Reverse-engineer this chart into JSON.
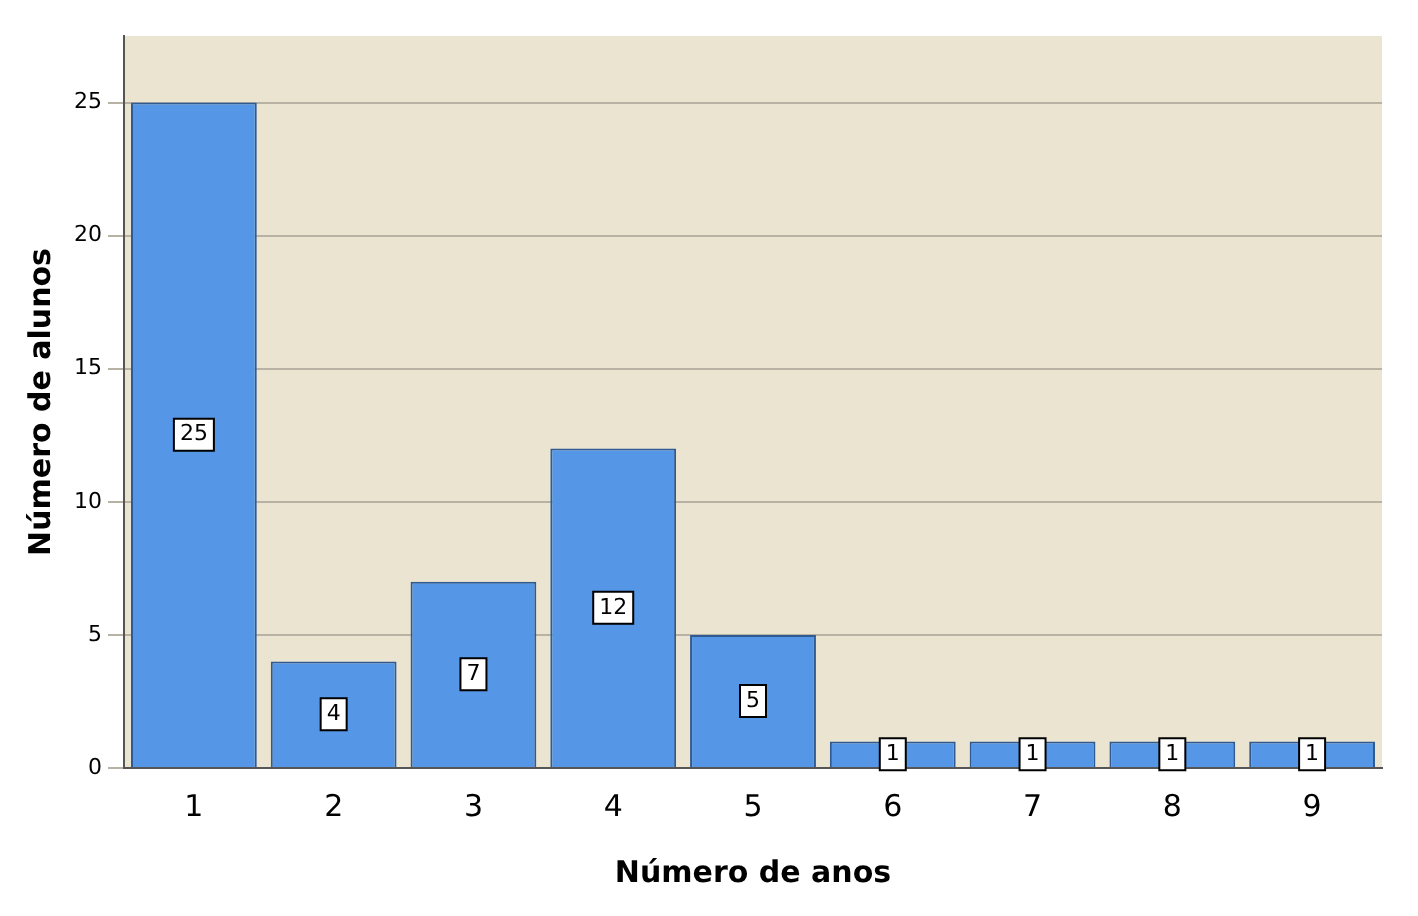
{
  "chart_data": {
    "type": "bar",
    "xlabel": "Número de anos",
    "ylabel": "Número de alunos",
    "categories": [
      "1",
      "2",
      "3",
      "4",
      "5",
      "6",
      "7",
      "8",
      "9"
    ],
    "values": [
      25,
      4,
      7,
      12,
      5,
      1,
      1,
      1,
      1
    ],
    "color": "#5596e6",
    "ylim": [
      0,
      27.5
    ],
    "yticks": [
      0,
      5,
      10,
      15,
      20,
      25
    ],
    "grid": "y",
    "data_labels": true,
    "legend": false
  }
}
